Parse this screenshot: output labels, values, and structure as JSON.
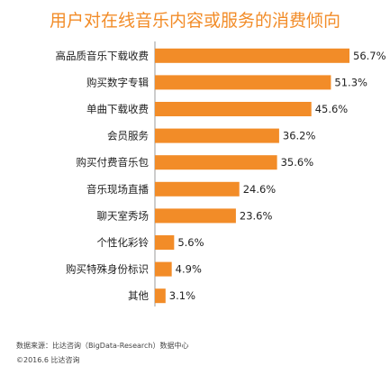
{
  "chart_data": {
    "type": "bar",
    "orientation": "horizontal",
    "title": "用户对在线音乐内容或服务的消费倾向",
    "categories": [
      "高品质音乐下载收费",
      "购买数字专辑",
      "单曲下载收费",
      "会员服务",
      "购买付费音乐包",
      "音乐现场直播",
      "聊天室秀场",
      "个性化彩铃",
      "购买特殊身份标识",
      "其他"
    ],
    "values": [
      56.7,
      51.3,
      45.6,
      36.2,
      35.6,
      24.6,
      23.6,
      5.6,
      4.9,
      3.1
    ],
    "value_labels": [
      "56.7%",
      "51.3%",
      "45.6%",
      "36.2%",
      "35.6%",
      "24.6%",
      "23.6%",
      "5.6%",
      "4.9%",
      "3.1%"
    ],
    "xlabel": "",
    "ylabel": "",
    "grid": false,
    "legend": "none",
    "colors": {
      "bar": "#f28c28",
      "title": "#f28c28",
      "axis": "#999999"
    }
  },
  "footer": {
    "source": "数据来源：比达咨询（BigData-Research）数据中心",
    "copyright": "©2016.6  比达咨询"
  }
}
